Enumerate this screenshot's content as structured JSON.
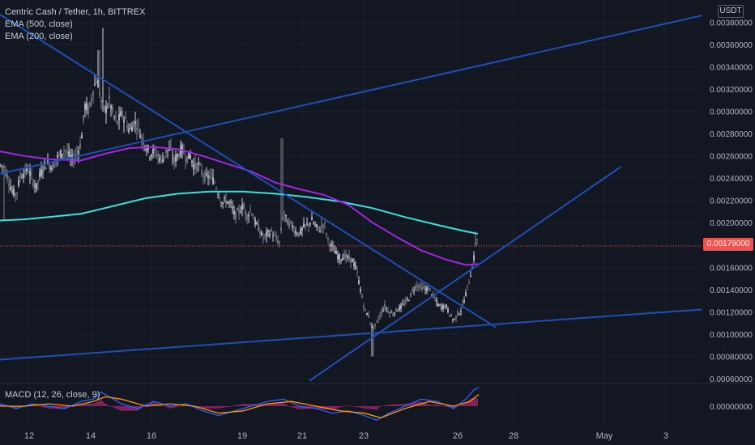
{
  "legend": {
    "title": "Centric Cash / Tether, 1h, BITTREX",
    "ema500": "EMA (500, close)",
    "ema200": "EMA (200, close)",
    "macd": "MACD (12, 26, close, 9)"
  },
  "unit_badge": "USDT",
  "last_price_label": "0.00179000",
  "colors": {
    "background": "#131722",
    "up": "#cfd3dc",
    "down": "#7d828d",
    "ema500": "#38e1dc",
    "ema200": "#a126e0",
    "trendline": "#1e4fb4",
    "last_price": "#ef5350",
    "macd_line": "#2962ff",
    "signal_line": "#ff9800",
    "histogram": "#b0287a"
  },
  "chart_data": {
    "type": "candlestick",
    "title": "Centric Cash / Tether, 1h, BITTREX",
    "x_tick_labels": [
      "12",
      "14",
      "16",
      "19",
      "21",
      "23",
      "26",
      "28",
      "May",
      "3"
    ],
    "y_tick_labels": [
      "0.00060000",
      "0.00080000",
      "0.00100000",
      "0.00120000",
      "0.00140000",
      "0.00160000",
      "0.00180000",
      "0.00200000",
      "0.00220000",
      "0.00240000",
      "0.00260000",
      "0.00280000",
      "0.00300000",
      "0.00320000",
      "0.00340000",
      "0.00360000",
      "0.00380000"
    ],
    "y_ticks": [
      0.0006,
      0.0008,
      0.001,
      0.0012,
      0.0014,
      0.0016,
      0.0018,
      0.002,
      0.0022,
      0.0024,
      0.0026,
      0.0028,
      0.003,
      0.0032,
      0.0034,
      0.0036,
      0.0038
    ],
    "ylim": [
      0.00057,
      0.004
    ],
    "price_anchors": [
      [
        0,
        0.00252
      ],
      [
        5,
        0.0025
      ],
      [
        10,
        0.0024
      ],
      [
        15,
        0.00228
      ],
      [
        20,
        0.00225
      ],
      [
        25,
        0.00242
      ],
      [
        30,
        0.00245
      ],
      [
        35,
        0.00248
      ],
      [
        40,
        0.00238
      ],
      [
        45,
        0.00232
      ],
      [
        50,
        0.00244
      ],
      [
        55,
        0.00252
      ],
      [
        60,
        0.00253
      ],
      [
        65,
        0.0025
      ],
      [
        70,
        0.00258
      ],
      [
        75,
        0.00262
      ],
      [
        80,
        0.00266
      ],
      [
        85,
        0.0026
      ],
      [
        90,
        0.00256
      ],
      [
        95,
        0.00262
      ],
      [
        100,
        0.00272
      ],
      [
        105,
        0.00305
      ],
      [
        110,
        0.003
      ],
      [
        115,
        0.0032
      ],
      [
        120,
        0.0033
      ],
      [
        125,
        0.00308
      ],
      [
        130,
        0.003
      ],
      [
        135,
        0.0031
      ],
      [
        140,
        0.00296
      ],
      [
        145,
        0.0029
      ],
      [
        150,
        0.00298
      ],
      [
        155,
        0.00292
      ],
      [
        160,
        0.00282
      ],
      [
        165,
        0.0029
      ],
      [
        170,
        0.00288
      ],
      [
        175,
        0.00276
      ],
      [
        180,
        0.0027
      ],
      [
        185,
        0.00262
      ],
      [
        190,
        0.00264
      ],
      [
        195,
        0.0026
      ],
      [
        200,
        0.00256
      ],
      [
        205,
        0.00264
      ],
      [
        210,
        0.00266
      ],
      [
        215,
        0.00255
      ],
      [
        220,
        0.00262
      ],
      [
        225,
        0.00266
      ],
      [
        230,
        0.00258
      ],
      [
        235,
        0.0026
      ],
      [
        240,
        0.0025
      ],
      [
        245,
        0.00252
      ],
      [
        250,
        0.00244
      ],
      [
        255,
        0.0024
      ],
      [
        260,
        0.00242
      ],
      [
        265,
        0.00236
      ],
      [
        270,
        0.00226
      ],
      [
        275,
        0.00218
      ],
      [
        280,
        0.0022
      ],
      [
        285,
        0.00216
      ],
      [
        290,
        0.00206
      ],
      [
        295,
        0.0021
      ],
      [
        300,
        0.00215
      ],
      [
        305,
        0.00206
      ],
      [
        310,
        0.00212
      ],
      [
        315,
        0.002
      ],
      [
        320,
        0.00194
      ],
      [
        325,
        0.00186
      ],
      [
        330,
        0.0019
      ],
      [
        335,
        0.00192
      ],
      [
        340,
        0.00186
      ],
      [
        345,
        0.00182
      ],
      [
        350,
        0.0021
      ],
      [
        355,
        0.002
      ],
      [
        360,
        0.00198
      ],
      [
        365,
        0.00192
      ],
      [
        370,
        0.0019
      ],
      [
        375,
        0.00196
      ],
      [
        380,
        0.00198
      ],
      [
        385,
        0.00202
      ],
      [
        390,
        0.00196
      ],
      [
        395,
        0.00194
      ],
      [
        400,
        0.002
      ],
      [
        405,
        0.00184
      ],
      [
        410,
        0.00178
      ],
      [
        415,
        0.00172
      ],
      [
        420,
        0.00168
      ],
      [
        425,
        0.0017
      ],
      [
        430,
        0.00168
      ],
      [
        435,
        0.00166
      ],
      [
        440,
        0.00158
      ],
      [
        445,
        0.0014
      ],
      [
        450,
        0.00122
      ],
      [
        455,
        0.00116
      ],
      [
        460,
        0.00104
      ],
      [
        465,
        0.0011
      ],
      [
        470,
        0.00118
      ],
      [
        475,
        0.00125
      ],
      [
        480,
        0.0012
      ],
      [
        485,
        0.00118
      ],
      [
        490,
        0.00122
      ],
      [
        495,
        0.00124
      ],
      [
        500,
        0.00128
      ],
      [
        505,
        0.00132
      ],
      [
        510,
        0.0014
      ],
      [
        515,
        0.00144
      ],
      [
        520,
        0.00142
      ],
      [
        525,
        0.0014
      ],
      [
        530,
        0.00141
      ],
      [
        535,
        0.00134
      ],
      [
        540,
        0.00127
      ],
      [
        545,
        0.00124
      ],
      [
        550,
        0.00126
      ],
      [
        555,
        0.00118
      ],
      [
        560,
        0.00112
      ],
      [
        565,
        0.00118
      ],
      [
        570,
        0.00122
      ],
      [
        575,
        0.00136
      ],
      [
        580,
        0.0015
      ],
      [
        585,
        0.00168
      ],
      [
        588,
        0.00188
      ],
      [
        591,
        0.0018
      ]
    ],
    "spikes": [
      {
        "x": 127,
        "high": 0.00375
      },
      {
        "x": 122,
        "high": 0.00355
      },
      {
        "x": 348,
        "high": 0.00276
      },
      {
        "x": 460,
        "low": 0.0008
      },
      {
        "x": 587,
        "high": 0.00192
      },
      {
        "x": 5,
        "low": 0.00202
      }
    ],
    "ema500_points": [
      [
        0,
        0.00202
      ],
      [
        30,
        0.00203
      ],
      [
        60,
        0.00205
      ],
      [
        100,
        0.00208
      ],
      [
        140,
        0.00215
      ],
      [
        180,
        0.00222
      ],
      [
        220,
        0.00226
      ],
      [
        260,
        0.00228
      ],
      [
        300,
        0.00228
      ],
      [
        340,
        0.00226
      ],
      [
        380,
        0.00223
      ],
      [
        420,
        0.00219
      ],
      [
        460,
        0.00213
      ],
      [
        500,
        0.00205
      ],
      [
        540,
        0.00198
      ],
      [
        570,
        0.00193
      ],
      [
        590,
        0.0019
      ]
    ],
    "ema200_points": [
      [
        0,
        0.00264
      ],
      [
        30,
        0.0026
      ],
      [
        60,
        0.00257
      ],
      [
        100,
        0.00256
      ],
      [
        130,
        0.00262
      ],
      [
        160,
        0.00267
      ],
      [
        190,
        0.00268
      ],
      [
        220,
        0.00266
      ],
      [
        250,
        0.0026
      ],
      [
        280,
        0.00253
      ],
      [
        310,
        0.00246
      ],
      [
        340,
        0.00236
      ],
      [
        370,
        0.0023
      ],
      [
        400,
        0.00225
      ],
      [
        430,
        0.00216
      ],
      [
        460,
        0.002
      ],
      [
        490,
        0.00187
      ],
      [
        520,
        0.00175
      ],
      [
        550,
        0.00167
      ],
      [
        575,
        0.00162
      ],
      [
        590,
        0.00163
      ]
    ],
    "trendlines": [
      {
        "x1": 0,
        "y1": 0.00244,
        "x2": 866,
        "y2": 0.00386
      },
      {
        "x1": 0,
        "y1": 0.00387,
        "x2": 612,
        "y2": 0.00106
      },
      {
        "x1": 0,
        "y1": 0.00077,
        "x2": 866,
        "y2": 0.00122
      },
      {
        "x1": 382,
        "y1": 0.00058,
        "x2": 766,
        "y2": 0.0025
      }
    ],
    "last_price": 0.00179,
    "macd": {
      "title": "MACD (12, 26, close, 9)",
      "zero_label": "0.00000000",
      "ylim": [
        -9e-05,
        9e-05
      ],
      "points": [
        [
          0,
          1e-05
        ],
        [
          20,
          -1e-05
        ],
        [
          40,
          1e-05
        ],
        [
          60,
          0.0
        ],
        [
          80,
          -1e-05
        ],
        [
          100,
          2e-05
        ],
        [
          115,
          3e-05
        ],
        [
          125,
          6e-05
        ],
        [
          135,
          4e-05
        ],
        [
          150,
          1e-05
        ],
        [
          170,
          -1e-05
        ],
        [
          190,
          2e-05
        ],
        [
          210,
          0.0
        ],
        [
          230,
          1e-05
        ],
        [
          250,
          -2e-05
        ],
        [
          270,
          -4e-05
        ],
        [
          290,
          -2e-05
        ],
        [
          310,
          0.0
        ],
        [
          330,
          2e-05
        ],
        [
          350,
          3e-05
        ],
        [
          370,
          0.0
        ],
        [
          390,
          -1e-05
        ],
        [
          410,
          -3e-05
        ],
        [
          430,
          -2e-05
        ],
        [
          450,
          -4e-05
        ],
        [
          465,
          -6e-05
        ],
        [
          480,
          -3e-05
        ],
        [
          500,
          0.0
        ],
        [
          520,
          3e-05
        ],
        [
          540,
          2e-05
        ],
        [
          560,
          -1e-05
        ],
        [
          575,
          3e-05
        ],
        [
          585,
          7e-05
        ],
        [
          591,
          8e-05
        ]
      ],
      "signal": [
        [
          0,
          0.0
        ],
        [
          30,
          0.0
        ],
        [
          60,
          1e-05
        ],
        [
          90,
          0.0
        ],
        [
          115,
          2e-05
        ],
        [
          130,
          4e-05
        ],
        [
          150,
          3e-05
        ],
        [
          180,
          0.0
        ],
        [
          210,
          1e-05
        ],
        [
          240,
          0.0
        ],
        [
          270,
          -3e-05
        ],
        [
          300,
          -2e-05
        ],
        [
          330,
          1e-05
        ],
        [
          360,
          2e-05
        ],
        [
          390,
          0.0
        ],
        [
          420,
          -2e-05
        ],
        [
          450,
          -3e-05
        ],
        [
          470,
          -5e-05
        ],
        [
          500,
          -1e-05
        ],
        [
          530,
          2e-05
        ],
        [
          560,
          0.0
        ],
        [
          580,
          2e-05
        ],
        [
          591,
          5e-05
        ]
      ]
    }
  }
}
